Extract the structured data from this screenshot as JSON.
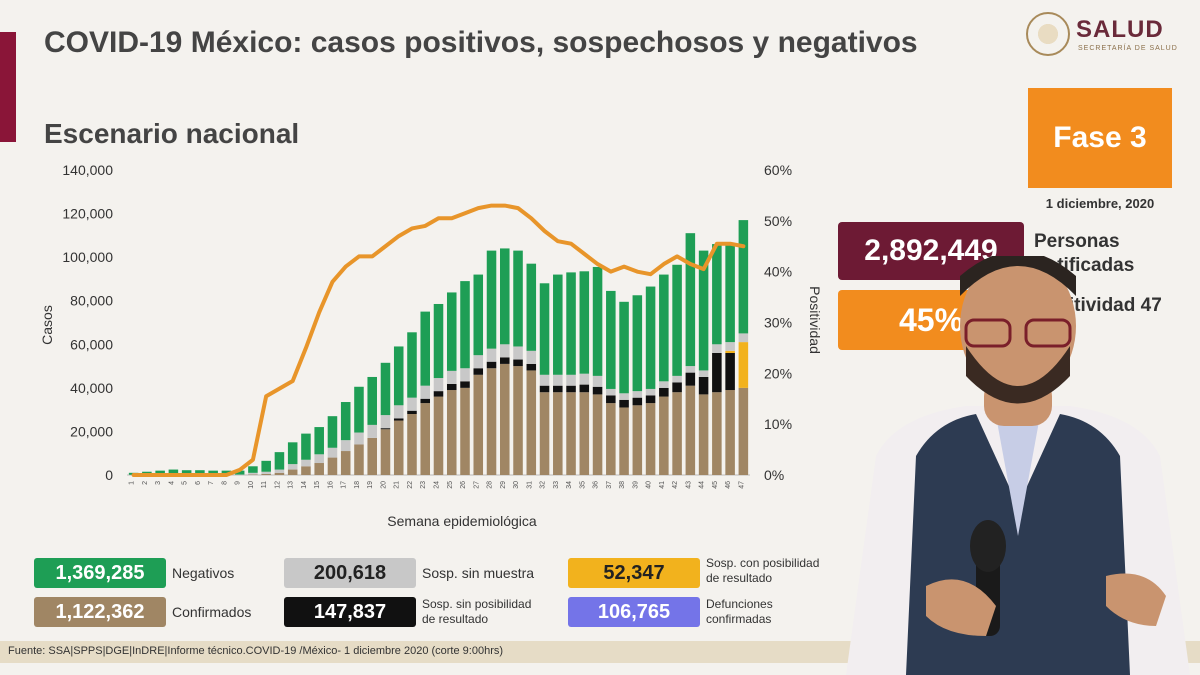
{
  "title": "COVID-19 México: casos positivos, sospechosos y negativos",
  "subtitle": "Escenario nacional",
  "logo": {
    "name": "SALUD",
    "sub": "SECRETARÍA DE SALUD"
  },
  "fase": "Fase 3",
  "fecha": "1 diciembre, 2020",
  "kpis": {
    "notificadas_value": "2,892,449",
    "notificadas_label": "Personas notificadas",
    "positividad_value": "45%",
    "positividad_label": "Positividad 47"
  },
  "legend": {
    "negativos": {
      "value": "1,369,285",
      "label": "Negativos",
      "color": "#1e9e55"
    },
    "confirmados": {
      "value": "1,122,362",
      "label": "Confirmados",
      "color": "#a08664"
    },
    "sin_muestra": {
      "value": "200,618",
      "label": "Sosp. sin muestra",
      "color": "#c8c8c8"
    },
    "sin_posibilidad": {
      "value": "147,837",
      "label1": "Sosp. sin posibilidad",
      "label2": "de resultado",
      "color": "#111111"
    },
    "con_posibilidad": {
      "value": "52,347",
      "label1": "Sosp. con posibilidad",
      "label2": "de resultado",
      "color": "#f2b21d"
    },
    "defunciones": {
      "value": "106,765",
      "label1": "Defunciones",
      "label2": "confirmadas",
      "color": "#7474e8"
    }
  },
  "footer": "Fuente: SSA|SPPS|DGE|InDRE|Informe técnico.COVID-19 /México- 1 diciembre 2020 (corte 9:00hrs)",
  "chart_data": {
    "type": "bar",
    "xlabel": "Semana epidemiológica",
    "ylabel": "Casos",
    "y2label": "Positividad",
    "ylim": [
      0,
      140000
    ],
    "y_ticks": [
      "0",
      "20,000",
      "40,000",
      "60,000",
      "80,000",
      "100,000",
      "120,000",
      "140,000"
    ],
    "y2lim": [
      0,
      60
    ],
    "y2_ticks": [
      "0%",
      "10%",
      "20%",
      "30%",
      "40%",
      "50%",
      "60%"
    ],
    "categories": [
      "1",
      "2",
      "3",
      "4",
      "5",
      "6",
      "7",
      "8",
      "9",
      "10",
      "11",
      "12",
      "13",
      "14",
      "15",
      "16",
      "17",
      "18",
      "19",
      "20",
      "21",
      "22",
      "23",
      "24",
      "25",
      "26",
      "27",
      "28",
      "29",
      "30",
      "31",
      "32",
      "33",
      "34",
      "35",
      "36",
      "37",
      "38",
      "39",
      "40",
      "41",
      "42",
      "43",
      "44",
      "45",
      "46",
      "47"
    ],
    "series": [
      {
        "name": "Confirmados",
        "color": "#a08664",
        "values": [
          0,
          0,
          0,
          0,
          0,
          0,
          0,
          0,
          0,
          200,
          500,
          1000,
          2500,
          4000,
          5500,
          8000,
          11000,
          14000,
          17000,
          21000,
          25000,
          28000,
          33000,
          36000,
          39000,
          40000,
          46000,
          49000,
          51000,
          50000,
          48000,
          38000,
          38000,
          38000,
          38000,
          37000,
          33000,
          31000,
          32000,
          33000,
          36000,
          38000,
          41000,
          37000,
          38000,
          39000,
          40000
        ]
      },
      {
        "name": "Sosp. sin posibilidad de resultado",
        "color": "#111111",
        "values": [
          0,
          0,
          0,
          0,
          0,
          0,
          0,
          0,
          0,
          0,
          0,
          0,
          0,
          0,
          0,
          0,
          0,
          0,
          0,
          500,
          1000,
          1500,
          2000,
          2500,
          2800,
          3000,
          3000,
          3000,
          3000,
          3000,
          3000,
          3000,
          3000,
          3000,
          3500,
          3500,
          3500,
          3500,
          3500,
          3500,
          4000,
          4500,
          6000,
          8000,
          18000,
          17000,
          0
        ]
      },
      {
        "name": "Sosp. con posibilidad de resultado",
        "color": "#f2b21d",
        "values": [
          0,
          0,
          0,
          0,
          0,
          0,
          0,
          0,
          0,
          0,
          0,
          0,
          0,
          0,
          0,
          0,
          0,
          0,
          0,
          0,
          0,
          0,
          0,
          0,
          0,
          0,
          0,
          0,
          0,
          0,
          0,
          0,
          0,
          0,
          0,
          0,
          0,
          0,
          0,
          0,
          0,
          0,
          0,
          0,
          0,
          1000,
          21000
        ]
      },
      {
        "name": "Sosp. sin muestra",
        "color": "#c8c8c8",
        "values": [
          100,
          200,
          200,
          300,
          200,
          200,
          200,
          200,
          200,
          800,
          1000,
          1500,
          2500,
          3000,
          4000,
          4500,
          5000,
          5500,
          6000,
          6000,
          6000,
          6000,
          6000,
          6000,
          6000,
          6000,
          6000,
          6000,
          6000,
          6000,
          6000,
          5000,
          5000,
          5000,
          5000,
          5000,
          3000,
          3000,
          3000,
          3000,
          3000,
          3000,
          3000,
          3000,
          4000,
          4000,
          4000
        ]
      },
      {
        "name": "Negativos",
        "color": "#1e9e55",
        "values": [
          900,
          1300,
          1800,
          2200,
          2000,
          2000,
          1800,
          1800,
          1800,
          3000,
          5000,
          8000,
          10000,
          12000,
          12500,
          14500,
          17500,
          21000,
          22000,
          24000,
          27000,
          30000,
          34000,
          34000,
          36000,
          40000,
          37000,
          45000,
          44000,
          44000,
          40000,
          42000,
          46000,
          47000,
          47000,
          50000,
          45000,
          42000,
          44000,
          47000,
          49000,
          51000,
          61000,
          55000,
          46000,
          45000,
          52000
        ]
      }
    ],
    "line": {
      "name": "Positividad",
      "color": "#e8952a",
      "values": [
        0,
        0,
        0,
        0,
        0,
        0,
        0,
        0,
        1,
        3,
        15.5,
        17,
        18.5,
        25,
        32,
        38,
        41,
        43,
        43,
        45,
        47,
        48.5,
        49,
        50.5,
        50.5,
        51.5,
        52.5,
        53,
        53,
        52.5,
        50.5,
        48,
        46,
        45.5,
        43.5,
        41.5,
        40,
        41,
        40,
        39.5,
        41.5,
        43,
        41.5,
        40.5,
        45.5,
        45.5,
        45
      ]
    }
  }
}
